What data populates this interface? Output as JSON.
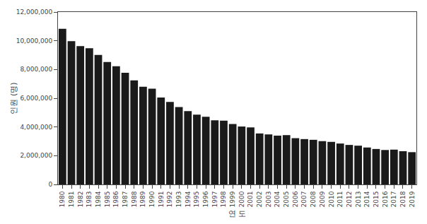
{
  "chart_data": {
    "type": "bar",
    "categories": [
      "1980",
      "1981",
      "1982",
      "1983",
      "1984",
      "1985",
      "1986",
      "1987",
      "1988",
      "1989",
      "1990",
      "1991",
      "1992",
      "1993",
      "1994",
      "1995",
      "1996",
      "1997",
      "1998",
      "1999",
      "2000",
      "2001",
      "2002",
      "2003",
      "2004",
      "2005",
      "2006",
      "2007",
      "2008",
      "2009",
      "2010",
      "2011",
      "2012",
      "2013",
      "2014",
      "2015",
      "2016",
      "2017",
      "2018",
      "2019"
    ],
    "values": [
      10827000,
      9972000,
      9627000,
      9484000,
      9008000,
      8520000,
      8224000,
      7767000,
      7245000,
      6799000,
      6661000,
      6051000,
      5741000,
      5386000,
      5097000,
      4851000,
      4706000,
      4463000,
      4434000,
      4210000,
      4031000,
      3969000,
      3548000,
      3481000,
      3397000,
      3432000,
      3220000,
      3156000,
      3106000,
      3013000,
      2962000,
      2847000,
      2748000,
      2698000,
      2570000,
      2467000,
      2396000,
      2422000,
      2314000,
      2245000
    ],
    "color": "#1a1a1a",
    "xlabel": "연 도",
    "ylabel": "인원 (명)",
    "ylim": [
      0,
      12000000
    ],
    "yticks": [
      0,
      {
        "value": 2000000,
        "label": "2,000,000"
      },
      {
        "value": 4000000,
        "label": "4,000,000"
      },
      {
        "value": 6000000,
        "label": "6,000,000"
      },
      {
        "value": 8000000,
        "label": "8,000,000"
      },
      {
        "value": 10000000,
        "label": "10,000,000"
      },
      {
        "value": 12000000,
        "label": "12,000,000"
      }
    ],
    "grid": false
  }
}
